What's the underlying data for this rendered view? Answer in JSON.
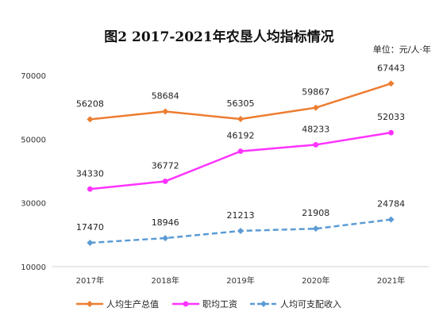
{
  "chart_data": {
    "type": "line",
    "title": "图2 2017-2021年农垦人均指标情况",
    "unit_note": "单位：元/人·年",
    "categories": [
      "2017年",
      "2018年",
      "2019年",
      "2020年",
      "2021年"
    ],
    "ylim": [
      10000,
      70000
    ],
    "yticks": [
      10000,
      30000,
      50000,
      70000
    ],
    "grid": false,
    "legend_position": "bottom",
    "series": [
      {
        "name": "人均生产总值",
        "values": [
          56208,
          58684,
          56305,
          59867,
          67443
        ],
        "color": "#ED7D31",
        "dash": "solid",
        "marker": "diamond"
      },
      {
        "name": "职均工资",
        "values": [
          34330,
          36772,
          46192,
          48233,
          52033
        ],
        "color": "#FF33FF",
        "dash": "solid",
        "marker": "circle"
      },
      {
        "name": "人均可支配收入",
        "values": [
          17470,
          18946,
          21213,
          21908,
          24784
        ],
        "color": "#5B9BD5",
        "dash": "dashed",
        "marker": "diamond"
      }
    ]
  }
}
